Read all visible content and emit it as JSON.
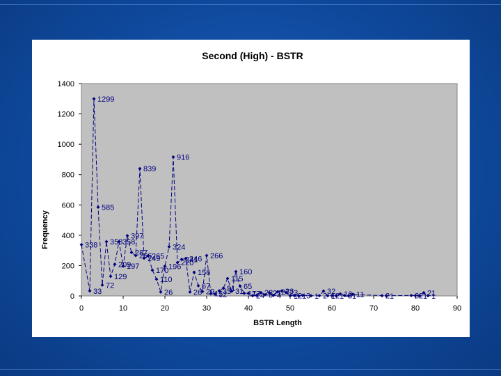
{
  "chart_data": {
    "type": "line",
    "title": "Second (High) - BSTR",
    "xlabel": "BSTR Length",
    "ylabel": "Frequency",
    "xlim": [
      0,
      90
    ],
    "ylim": [
      0,
      1400
    ],
    "xticks": [
      0,
      10,
      20,
      30,
      40,
      50,
      60,
      70,
      80,
      90
    ],
    "yticks": [
      0,
      200,
      400,
      600,
      800,
      1000,
      1200,
      1400
    ],
    "grid": false,
    "plot_background": "#c0c0c0",
    "series_color": "#00007f",
    "line_style": "dashed",
    "series": [
      {
        "x": [
          0,
          2,
          3,
          4,
          5,
          6,
          7,
          8,
          9,
          10,
          11,
          12,
          13,
          14,
          15,
          16,
          17,
          18,
          19,
          20,
          21,
          22,
          23,
          24,
          25,
          26,
          27,
          28,
          29,
          30,
          31,
          32,
          33,
          34,
          35,
          36,
          37,
          38,
          39,
          40,
          41,
          42,
          43,
          44,
          45,
          46,
          47,
          48,
          49,
          50,
          51,
          52,
          53,
          55,
          57,
          58,
          59,
          60,
          61,
          62,
          63,
          64,
          65,
          72,
          73,
          79,
          80,
          81,
          82,
          83
        ],
        "values": [
          338,
          33,
          1299,
          585,
          72,
          358,
          129,
          209,
          358,
          197,
          397,
          287,
          266,
          839,
          249,
          265,
          170,
          110,
          26,
          196,
          324,
          916,
          220,
          241,
          246,
          26,
          156,
          67,
          29,
          266,
          15,
          12,
          33,
          51,
          115,
          31,
          160,
          65,
          17,
          17,
          2,
          4,
          22,
          8,
          21,
          4,
          27,
          33,
          23,
          1,
          2,
          1,
          3,
          1,
          2,
          32,
          1,
          2,
          1,
          13,
          3,
          1,
          11,
          2,
          1,
          3,
          2,
          1,
          21,
          1
        ],
        "labels": [
          "338",
          "33",
          "1299",
          "585",
          "72",
          "358",
          "129",
          "209",
          "358",
          "197",
          "397",
          "287",
          "266",
          "839",
          "249",
          "265",
          "170",
          "110",
          "26",
          "196",
          "324",
          "916",
          "220",
          "241",
          "246",
          "26",
          "156",
          "67",
          "29",
          "266",
          "15",
          "12",
          "33",
          "51",
          "115",
          "31",
          "160",
          "65",
          "17",
          "17",
          "2",
          "4",
          "22",
          "8",
          "21",
          "4",
          "27",
          "33",
          "23",
          "1",
          "2",
          "1",
          "3",
          "1",
          "2",
          "32",
          "1",
          "2",
          "1",
          "13",
          "3",
          "1",
          "11",
          "2",
          "1",
          "3",
          "2",
          "1",
          "21",
          "1"
        ]
      }
    ]
  }
}
